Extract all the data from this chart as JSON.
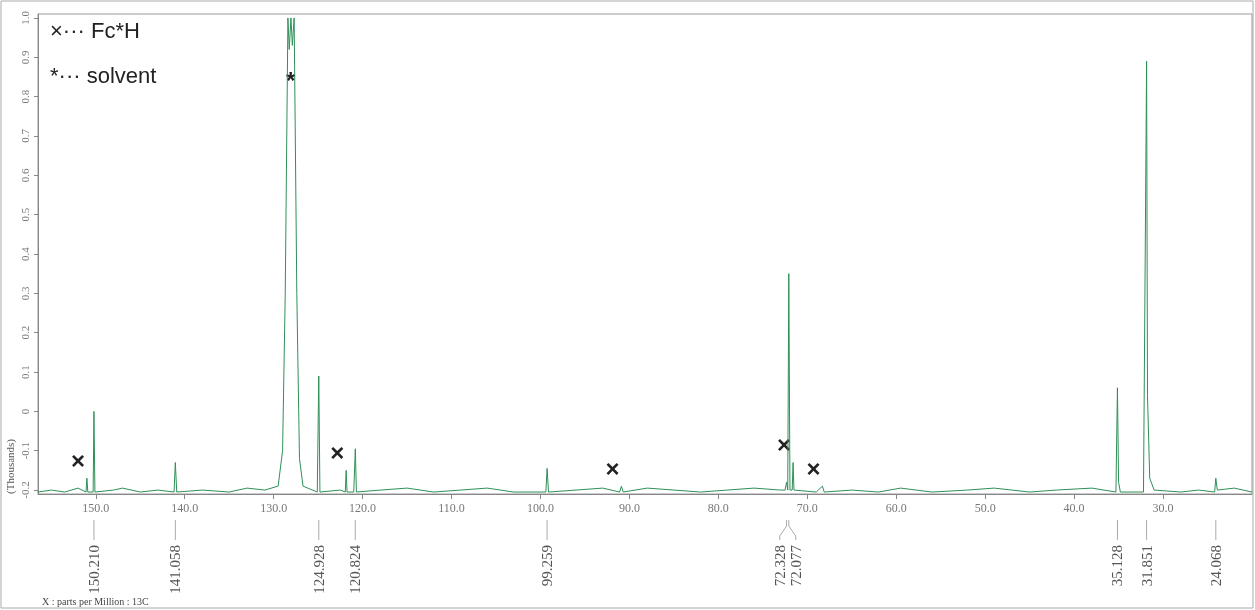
{
  "chart_data": {
    "type": "line",
    "ylabel": "(Thousands)",
    "xlim": [
      156.5,
      20
    ],
    "ylim": [
      -0.21,
      1.01
    ],
    "xticks": [
      {
        "value": 150,
        "label": "150.0"
      },
      {
        "value": 140,
        "label": "140.0"
      },
      {
        "value": 130,
        "label": "130.0"
      },
      {
        "value": 120,
        "label": "120.0"
      },
      {
        "value": 110,
        "label": "110.0"
      },
      {
        "value": 100,
        "label": "100.0"
      },
      {
        "value": 90,
        "label": "90.0"
      },
      {
        "value": 80,
        "label": "80.0"
      },
      {
        "value": 70,
        "label": "70.0"
      },
      {
        "value": 60,
        "label": "60.0"
      },
      {
        "value": 50,
        "label": "50.0"
      },
      {
        "value": 40,
        "label": "40.0"
      },
      {
        "value": 30,
        "label": "30.0"
      }
    ],
    "yticks": [
      -0.2,
      -0.1,
      0,
      0.1,
      0.2,
      0.3,
      0.4,
      0.5,
      0.6,
      0.7,
      0.8,
      0.9,
      {
        "value": 1,
        "label": "1.0"
      }
    ],
    "grid": false,
    "marker": "none",
    "line_style": "solid",
    "series": [
      {
        "color": "#2f8f57",
        "x": [
          156.5,
          155,
          153.5,
          152,
          151.1,
          151,
          150.9,
          150.3,
          150.21,
          150.1,
          148,
          147,
          145,
          143,
          141.2,
          141.06,
          140.9,
          138,
          135,
          133,
          131,
          129.5,
          129,
          128.7,
          128.4,
          128.25,
          128.06,
          127.9,
          127.7,
          127.4,
          127.1,
          126.7,
          125.1,
          124.93,
          124.8,
          122.5,
          121.95,
          121.85,
          121.75,
          121,
          120.82,
          120.7,
          118,
          115,
          112,
          109,
          106,
          103,
          99.4,
          99.26,
          99.1,
          96,
          93,
          91.1,
          90.9,
          90.7,
          88,
          85,
          82,
          79,
          76,
          73,
          72.5,
          72.33,
          72.2,
          72.08,
          71.95,
          71.7,
          71.6,
          71.5,
          69,
          68.3,
          68.1,
          65,
          62,
          59.5,
          56,
          52,
          49,
          45,
          42,
          38,
          35.3,
          35.13,
          35,
          34.8,
          32.2,
          31.85,
          31.75,
          31.5,
          31,
          28,
          26,
          24.2,
          24.07,
          23.9,
          22,
          20
        ],
        "values": [
          -0.205,
          -0.2,
          -0.205,
          -0.195,
          -0.205,
          -0.17,
          -0.205,
          -0.205,
          0.0,
          -0.205,
          -0.2,
          -0.195,
          -0.205,
          -0.2,
          -0.205,
          -0.13,
          -0.205,
          -0.2,
          -0.205,
          -0.195,
          -0.2,
          -0.19,
          -0.1,
          0.3,
          1.0,
          0.92,
          1.0,
          0.93,
          1.0,
          0.3,
          -0.12,
          -0.19,
          -0.205,
          0.09,
          -0.205,
          -0.2,
          -0.205,
          -0.15,
          -0.205,
          -0.205,
          -0.095,
          -0.205,
          -0.2,
          -0.195,
          -0.205,
          -0.2,
          -0.195,
          -0.205,
          -0.205,
          -0.145,
          -0.205,
          -0.2,
          -0.195,
          -0.205,
          -0.19,
          -0.205,
          -0.195,
          -0.2,
          -0.205,
          -0.2,
          -0.195,
          -0.2,
          -0.2,
          -0.18,
          -0.2,
          0.35,
          -0.2,
          -0.2,
          -0.13,
          -0.2,
          -0.205,
          -0.19,
          -0.205,
          -0.2,
          -0.205,
          -0.195,
          -0.205,
          -0.2,
          -0.195,
          -0.205,
          -0.2,
          -0.195,
          -0.205,
          0.06,
          -0.18,
          -0.205,
          -0.205,
          0.89,
          0.04,
          -0.17,
          -0.2,
          -0.205,
          -0.2,
          -0.205,
          -0.17,
          -0.2,
          -0.195,
          -0.205
        ]
      }
    ],
    "annotations": [
      "×··· Fc*H",
      "*··· solvent",
      {
        "text": "×",
        "x": 151,
        "y": -0.17
      },
      {
        "text": "*",
        "x": 128.1,
        "y": 0.84
      },
      {
        "text": "×",
        "x": 121.85,
        "y": -0.15
      },
      {
        "text": "×",
        "x": 90.9,
        "y": -0.19
      },
      {
        "text": "×",
        "x": 71.6,
        "y": -0.13
      },
      {
        "text": "×",
        "x": 68.3,
        "y": -0.19
      },
      {
        "text": "150.210",
        "x": 150.21
      },
      {
        "text": "141.058",
        "x": 141.058
      },
      {
        "text": "124.928",
        "x": 124.928
      },
      {
        "text": "120.824",
        "x": 120.824
      },
      {
        "text": "99.259",
        "x": 99.259
      },
      {
        "text": "72.328",
        "x": 72.328
      },
      {
        "text": "72.077",
        "x": 72.077
      },
      {
        "text": "35.128",
        "x": 35.128
      },
      {
        "text": "31.851",
        "x": 31.851
      },
      {
        "text": "24.068",
        "x": 24.068
      },
      "X : parts per Million : 13C"
    ]
  }
}
